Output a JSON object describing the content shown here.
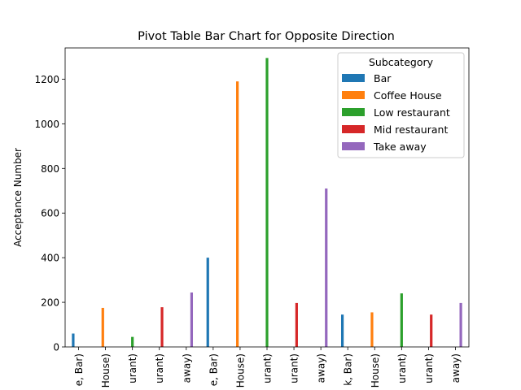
{
  "chart_data": {
    "type": "bar",
    "title": "Pivot Table Bar Chart for Opposite Direction",
    "xlabel": "",
    "ylabel": "Acceptance Number",
    "ylim": [
      0,
      1340
    ],
    "yticks": [
      0,
      200,
      400,
      600,
      800,
      1000,
      1200
    ],
    "grid": false,
    "legend": {
      "title": "Subcategory",
      "placement": "top-right"
    },
    "categories": [
      "e, Bar)",
      "House)",
      "urant)",
      "urant)",
      "away)",
      "e, Bar)",
      "House)",
      "urant)",
      "urant)",
      "away)",
      "k, Bar)",
      "House)",
      "urant)",
      "urant)",
      "away)"
    ],
    "series": [
      {
        "name": "Bar",
        "color": "#1f77b4",
        "values": [
          60,
          0,
          0,
          0,
          0,
          400,
          0,
          0,
          0,
          0,
          145,
          0,
          0,
          0,
          0
        ]
      },
      {
        "name": "Coffee House",
        "color": "#ff7f0e",
        "values": [
          0,
          175,
          0,
          0,
          0,
          0,
          1190,
          0,
          0,
          0,
          0,
          155,
          0,
          0,
          0
        ]
      },
      {
        "name": "Low restaurant",
        "color": "#2ca02c",
        "values": [
          0,
          0,
          45,
          0,
          0,
          0,
          0,
          1295,
          0,
          0,
          0,
          0,
          240,
          0,
          0
        ]
      },
      {
        "name": "Mid restaurant",
        "color": "#d62728",
        "values": [
          0,
          0,
          0,
          178,
          0,
          0,
          0,
          0,
          197,
          0,
          0,
          0,
          0,
          145,
          0
        ]
      },
      {
        "name": "Take away",
        "color": "#9467bd",
        "values": [
          0,
          0,
          0,
          0,
          244,
          0,
          0,
          0,
          0,
          710,
          0,
          0,
          0,
          0,
          197
        ]
      }
    ]
  }
}
